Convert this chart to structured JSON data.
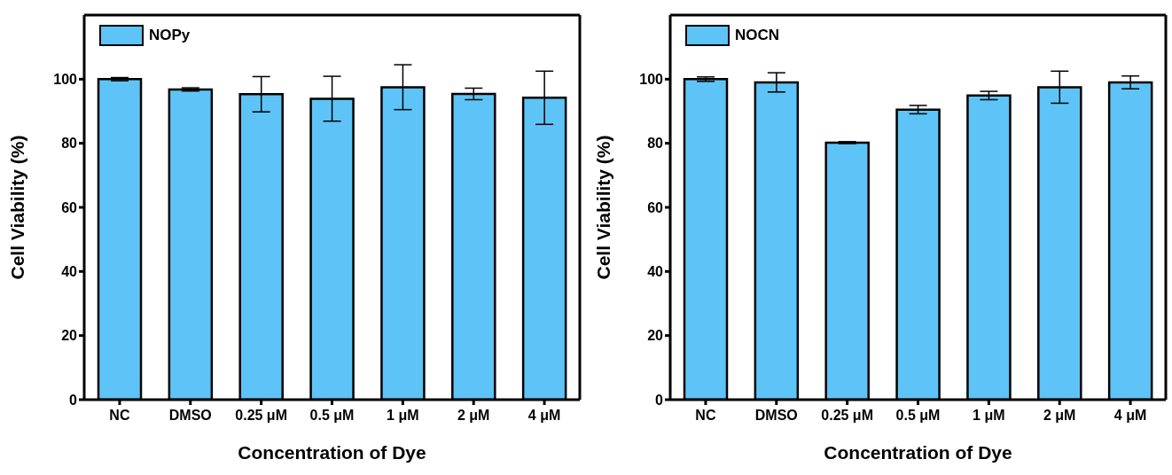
{
  "chart_data": [
    {
      "type": "bar",
      "categories": [
        "NC",
        "DMSO",
        "0.25 μM",
        "0.5 μM",
        "1 μM",
        "2 μM",
        "4 μM"
      ],
      "xlabel": "Concentration of Dye",
      "ylabel": "Cell Viability (%)",
      "ylim": [
        0,
        120
      ],
      "yticks": [
        0,
        20,
        40,
        60,
        80,
        100
      ],
      "legend": "top left",
      "grid": false,
      "series": [
        {
          "name": "NOPy",
          "color": "#5ec4f7",
          "values": [
            100,
            96.8,
            95.3,
            93.9,
            97.5,
            95.4,
            94.2
          ],
          "errors": [
            0.5,
            0.5,
            5.5,
            7,
            7,
            1.8,
            8.3
          ]
        }
      ]
    },
    {
      "type": "bar",
      "categories": [
        "NC",
        "DMSO",
        "0.25 μM",
        "0.5 μM",
        "1 μM",
        "2 μM",
        "4 μM"
      ],
      "xlabel": "Concentration of Dye",
      "ylabel": "Cell Viability (%)",
      "ylim": [
        0,
        120
      ],
      "yticks": [
        0,
        20,
        40,
        60,
        80,
        100
      ],
      "legend": "top left",
      "grid": false,
      "series": [
        {
          "name": "NOCN",
          "color": "#5ec4f7",
          "values": [
            100,
            99,
            80.2,
            90.5,
            94.9,
            97.5,
            99
          ],
          "errors": [
            0.7,
            3,
            0.3,
            1.3,
            1.3,
            5,
            2
          ]
        }
      ]
    }
  ]
}
